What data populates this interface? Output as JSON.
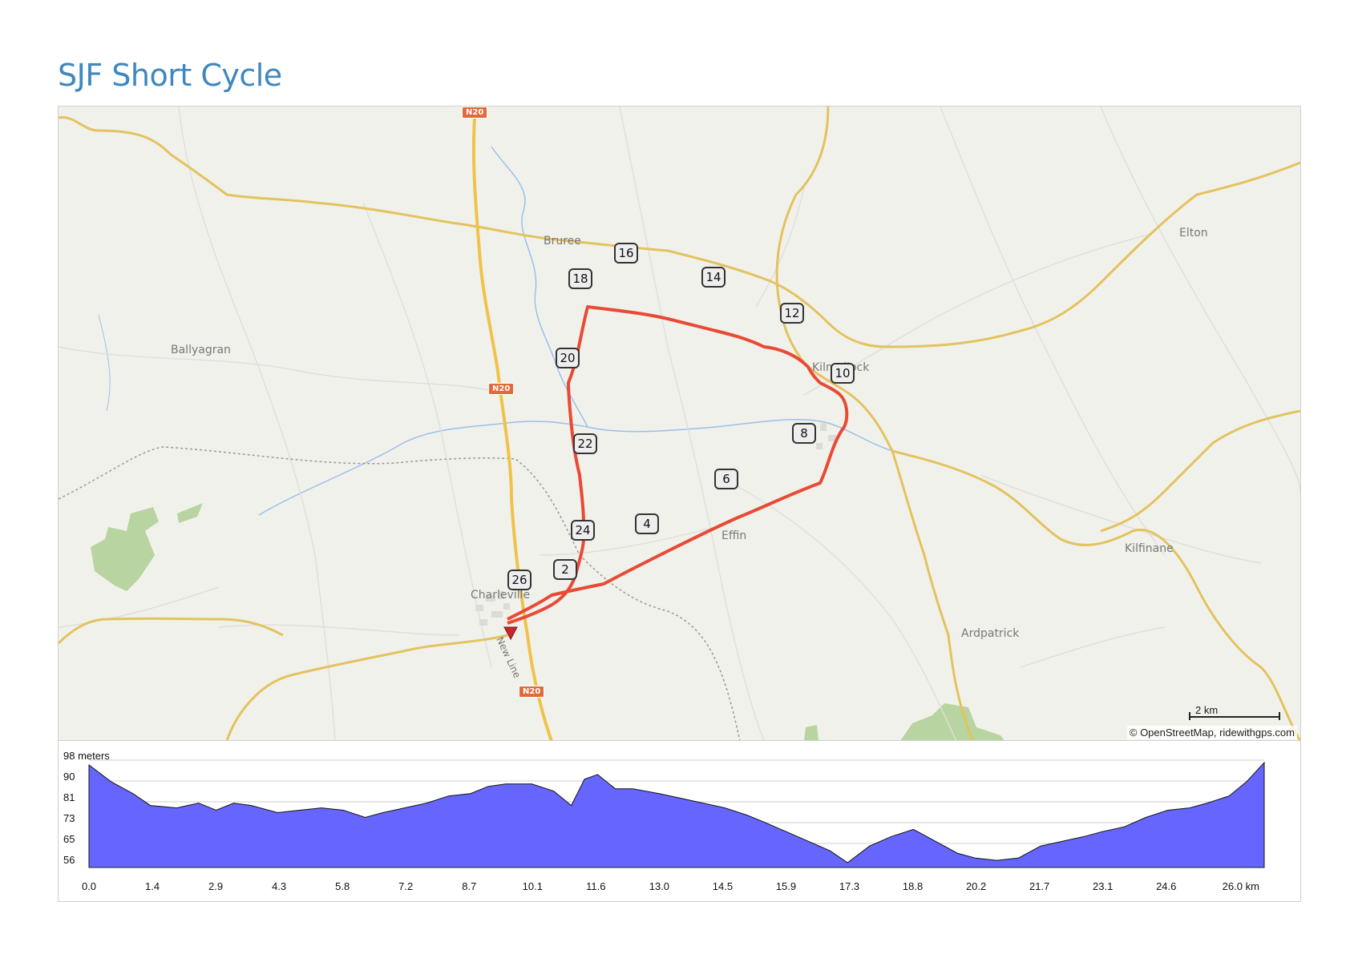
{
  "title": "SJF Short Cycle",
  "map": {
    "places": [
      {
        "name": "Bruree",
        "id": "bruree"
      },
      {
        "name": "Ballyagran",
        "id": "ballyagran"
      },
      {
        "name": "Kilmallock",
        "id": "kilmallock"
      },
      {
        "name": "Elton",
        "id": "elton"
      },
      {
        "name": "Effin",
        "id": "effin"
      },
      {
        "name": "Kilfinane",
        "id": "kilfinane"
      },
      {
        "name": "Ardpatrick",
        "id": "ardpatrick"
      },
      {
        "name": "Charleville",
        "id": "charleville"
      },
      {
        "name": "New Line",
        "id": "newline"
      }
    ],
    "road_shields": [
      "N20",
      "N20",
      "N20"
    ],
    "km_markers": [
      "2",
      "4",
      "6",
      "8",
      "10",
      "12",
      "14",
      "16",
      "18",
      "20",
      "22",
      "24",
      "26"
    ],
    "route_color": "#ee5533",
    "attribution": "© OpenStreetMap, ridewithgps.com",
    "scale_label": "2 km"
  },
  "elevation": {
    "unit_label": "98 meters",
    "y_ticks": [
      "90",
      "81",
      "73",
      "65",
      "56"
    ],
    "x_ticks": [
      "0.0",
      "1.4",
      "2.9",
      "4.3",
      "5.8",
      "7.2",
      "8.7",
      "10.1",
      "11.6",
      "13.0",
      "14.5",
      "15.9",
      "17.3",
      "18.8",
      "20.2",
      "21.7",
      "23.1",
      "24.6",
      "26.0 km"
    ],
    "fill_color": "#6666ff"
  },
  "chart_data": {
    "type": "area",
    "title": "",
    "xlabel": "km",
    "ylabel": "meters",
    "xlim": [
      0,
      26.8
    ],
    "ylim": [
      53,
      98
    ],
    "grid": true,
    "x": [
      0.0,
      0.5,
      1.0,
      1.4,
      2.0,
      2.5,
      2.9,
      3.3,
      3.7,
      4.3,
      4.8,
      5.3,
      5.8,
      6.3,
      6.7,
      7.2,
      7.7,
      8.2,
      8.7,
      9.1,
      9.5,
      10.1,
      10.6,
      11.0,
      11.3,
      11.6,
      12.0,
      12.4,
      13.0,
      13.5,
      14.0,
      14.5,
      15.0,
      15.4,
      15.9,
      16.4,
      16.9,
      17.3,
      17.8,
      18.3,
      18.8,
      19.3,
      19.8,
      20.2,
      20.7,
      21.2,
      21.7,
      22.2,
      22.7,
      23.1,
      23.6,
      24.1,
      24.6,
      25.1,
      25.5,
      26.0,
      26.4,
      26.8
    ],
    "y": [
      96,
      89,
      84,
      79,
      78,
      80,
      77,
      80,
      79,
      76,
      77,
      78,
      77,
      74,
      76,
      78,
      80,
      83,
      84,
      87,
      88,
      88,
      85,
      79,
      90,
      92,
      86,
      86,
      84,
      82,
      80,
      78,
      75,
      72,
      68,
      64,
      60,
      55,
      62,
      66,
      69,
      64,
      59,
      57,
      56,
      57,
      62,
      64,
      66,
      68,
      70,
      74,
      77,
      78,
      80,
      83,
      89,
      97
    ]
  }
}
